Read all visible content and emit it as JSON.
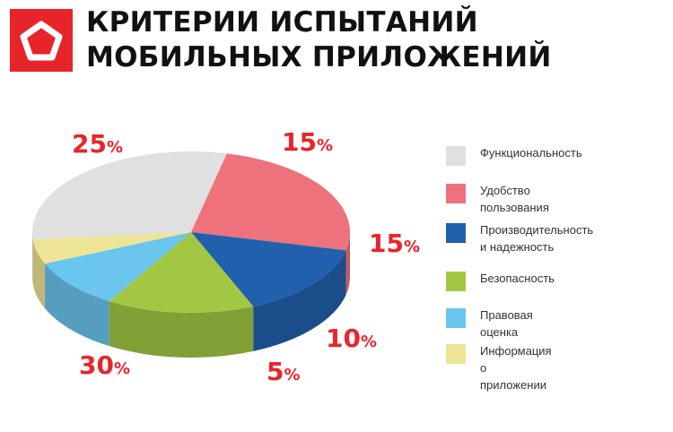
{
  "header": {
    "title_line1": "КРИТЕРИИ ИСПЫТАНИЙ",
    "title_line2": "МОБИЛЬНЫХ ПРИЛОЖЕНИЙ",
    "logo_icon": "pentagon-logo-icon",
    "brand_color": "#e8242b"
  },
  "chart_data": {
    "type": "pie",
    "style": "3d",
    "legend_position": "right",
    "value_unit": "%",
    "series": [
      {
        "name": "Функциональность",
        "value": 30,
        "color": "#e0e0e0"
      },
      {
        "name": "Удобство пользования",
        "value": 25,
        "color": "#ee727c"
      },
      {
        "name": "Производительность\nи надежность",
        "value": 15,
        "color": "#2160ad"
      },
      {
        "name": "Безопасность",
        "value": 15,
        "color": "#a2c843"
      },
      {
        "name": "Правовая оценка",
        "value": 10,
        "color": "#6ac5ef"
      },
      {
        "name": "Информация о приложении",
        "value": 5,
        "color": "#ede595"
      }
    ],
    "label_color": "#e8242b"
  }
}
